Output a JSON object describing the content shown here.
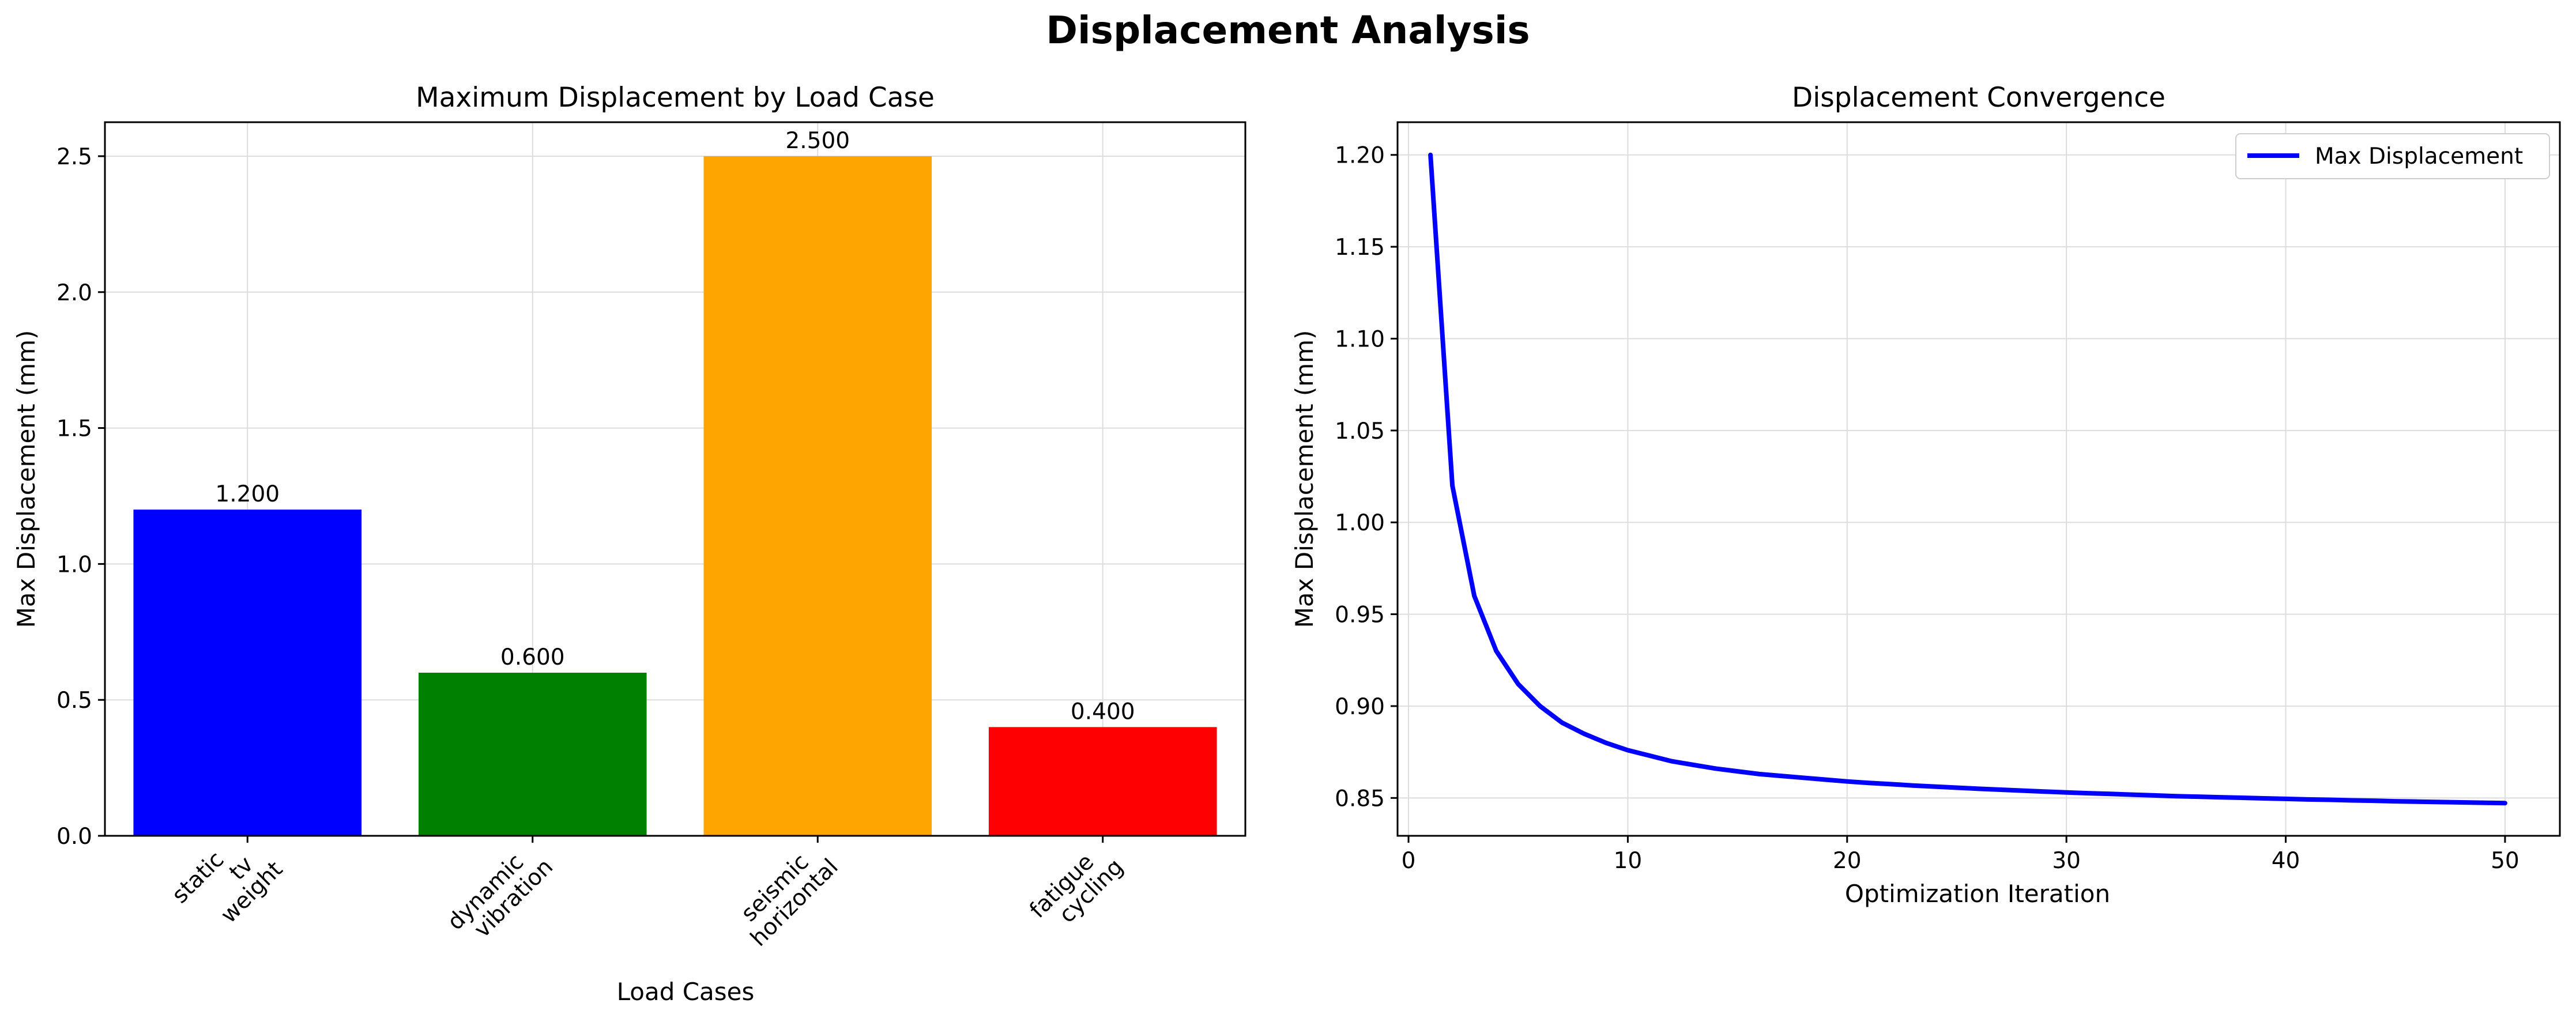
{
  "figure": {
    "title": "Displacement Analysis"
  },
  "chart_data": [
    {
      "type": "bar",
      "title": "Maximum Displacement by Load Case",
      "xlabel": "Load Cases",
      "ylabel": "Max Displacement (mm)",
      "categories": [
        [
          "static",
          "tv",
          "weight"
        ],
        [
          "dynamic",
          "vibration"
        ],
        [
          "seismic",
          "horizontal"
        ],
        [
          "fatigue",
          "cycling"
        ]
      ],
      "values": [
        1.2,
        0.6,
        2.5,
        0.4
      ],
      "data_labels": [
        "1.200",
        "0.600",
        "2.500",
        "0.400"
      ],
      "colors": [
        "#0000ff",
        "#008000",
        "#ffa500",
        "#ff0000"
      ],
      "ylim": [
        0,
        2.625
      ],
      "yticks": [
        0.0,
        0.5,
        1.0,
        1.5,
        2.0,
        2.5
      ],
      "ytick_labels": [
        "0.0",
        "0.5",
        "1.0",
        "1.5",
        "2.0",
        "2.5"
      ],
      "grid": true
    },
    {
      "type": "line",
      "title": "Displacement Convergence",
      "xlabel": "Optimization Iteration",
      "ylabel": "Max Displacement (mm)",
      "series": [
        {
          "name": "Max Displacement",
          "color": "#0000ff",
          "x": [
            1,
            2,
            3,
            4,
            5,
            6,
            7,
            8,
            9,
            10,
            11,
            12,
            13,
            14,
            15,
            16,
            17,
            18,
            19,
            20,
            21,
            22,
            23,
            24,
            25,
            26,
            27,
            28,
            29,
            30,
            31,
            32,
            33,
            34,
            35,
            36,
            37,
            38,
            39,
            40,
            41,
            42,
            43,
            44,
            45,
            46,
            47,
            48,
            49,
            50
          ],
          "y": [
            1.2,
            1.02,
            0.96,
            0.93,
            0.912,
            0.9,
            0.891,
            0.885,
            0.88,
            0.876,
            0.873,
            0.87,
            0.868,
            0.866,
            0.8645,
            0.863,
            0.862,
            0.861,
            0.86,
            0.859,
            0.8582,
            0.8575,
            0.8568,
            0.8562,
            0.8556,
            0.855,
            0.8545,
            0.854,
            0.8535,
            0.853,
            0.8526,
            0.8522,
            0.8518,
            0.8514,
            0.851,
            0.8507,
            0.8504,
            0.8501,
            0.8498,
            0.8495,
            0.8492,
            0.849,
            0.8487,
            0.8485,
            0.8482,
            0.848,
            0.8478,
            0.8476,
            0.8474,
            0.8472
          ]
        }
      ],
      "xlim": [
        -0.5,
        52.5
      ],
      "ylim": [
        0.8294,
        1.2178
      ],
      "xticks": [
        0,
        10,
        20,
        30,
        40,
        50
      ],
      "xtick_labels": [
        "0",
        "10",
        "20",
        "30",
        "40",
        "50"
      ],
      "yticks": [
        0.85,
        0.9,
        0.95,
        1.0,
        1.05,
        1.1,
        1.15,
        1.2
      ],
      "ytick_labels": [
        "0.85",
        "0.90",
        "0.95",
        "1.00",
        "1.05",
        "1.10",
        "1.15",
        "1.20"
      ],
      "legend_position": "top-right",
      "grid": true
    }
  ]
}
